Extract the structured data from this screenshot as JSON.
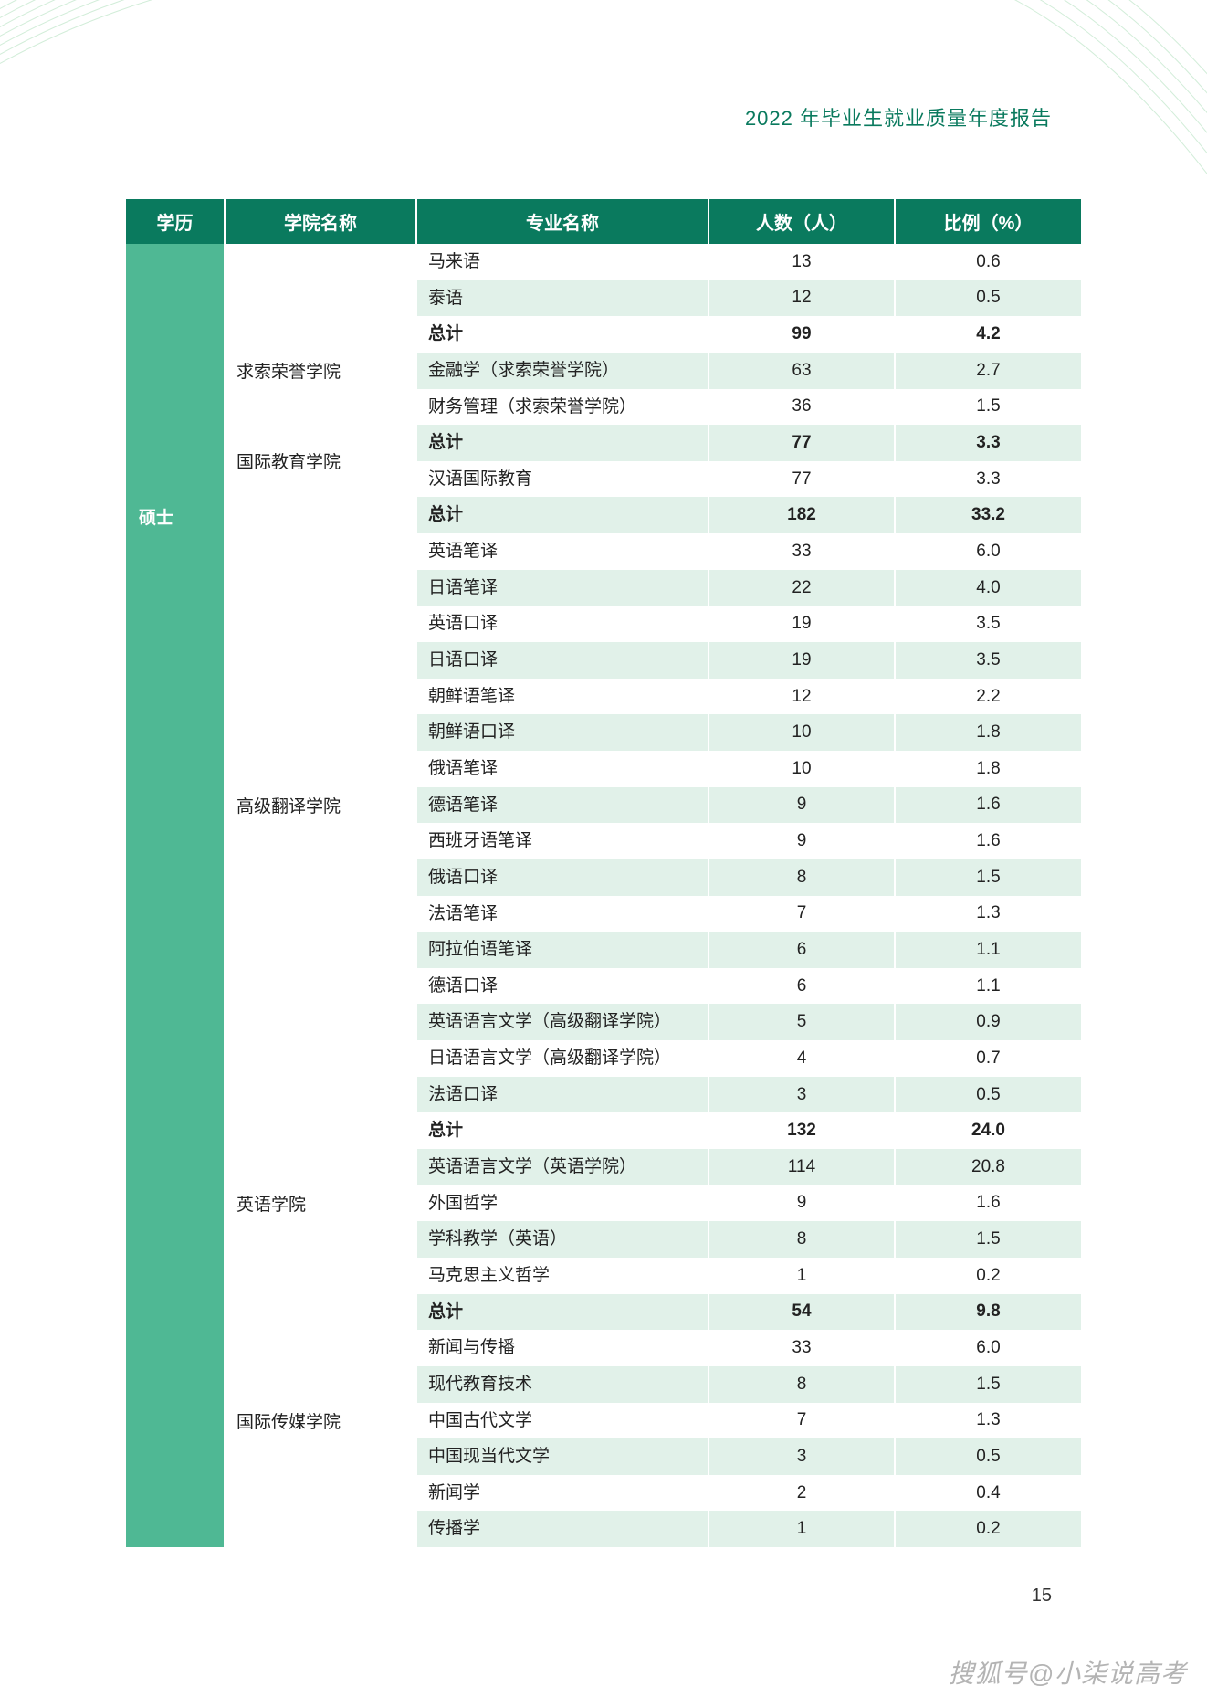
{
  "report_title": "2022 年毕业生就业质量年度报告",
  "page_number": "15",
  "watermark": "搜狐号@小柒说高考",
  "colors": {
    "header_bg": "#0a7a5e",
    "header_text": "#ffffff",
    "degree_cell_bg": "#4fb894",
    "row_stripe": "#e1f1e9",
    "page_bg": "#ffffff",
    "title_color": "#0a7a5e"
  },
  "table": {
    "columns": [
      "学历",
      "学院名称",
      "专业名称",
      "人数（人）",
      "比例（%）"
    ],
    "rows": [
      {
        "degree": "",
        "degree_rowspan": 7,
        "college": "",
        "college_rowspan": 2,
        "major": "马来语",
        "count": "13",
        "pct": "0.6",
        "total": false
      },
      {
        "major": "泰语",
        "count": "12",
        "pct": "0.5",
        "total": false
      },
      {
        "college": "求索荣誉学院",
        "college_rowspan": 3,
        "major": "总计",
        "count": "99",
        "pct": "4.2",
        "total": true
      },
      {
        "major": "金融学（求索荣誉学院）",
        "count": "63",
        "pct": "2.7",
        "total": false
      },
      {
        "major": "财务管理（求索荣誉学院）",
        "count": "36",
        "pct": "1.5",
        "total": false
      },
      {
        "college": "国际教育学院",
        "college_rowspan": 2,
        "major": "总计",
        "count": "77",
        "pct": "3.3",
        "total": true
      },
      {
        "major": "汉语国际教育",
        "count": "77",
        "pct": "3.3",
        "total": false
      },
      {
        "degree": "硕士",
        "degree_rowspan": 30,
        "college": "高级翻译学院",
        "college_rowspan": 17,
        "major": "总计",
        "count": "182",
        "pct": "33.2",
        "total": true
      },
      {
        "major": "英语笔译",
        "count": "33",
        "pct": "6.0",
        "total": false
      },
      {
        "major": "日语笔译",
        "count": "22",
        "pct": "4.0",
        "total": false
      },
      {
        "major": "英语口译",
        "count": "19",
        "pct": "3.5",
        "total": false
      },
      {
        "major": "日语口译",
        "count": "19",
        "pct": "3.5",
        "total": false
      },
      {
        "major": "朝鲜语笔译",
        "count": "12",
        "pct": "2.2",
        "total": false
      },
      {
        "major": "朝鲜语口译",
        "count": "10",
        "pct": "1.8",
        "total": false
      },
      {
        "major": "俄语笔译",
        "count": "10",
        "pct": "1.8",
        "total": false
      },
      {
        "major": "德语笔译",
        "count": "9",
        "pct": "1.6",
        "total": false
      },
      {
        "major": "西班牙语笔译",
        "count": "9",
        "pct": "1.6",
        "total": false
      },
      {
        "major": "俄语口译",
        "count": "8",
        "pct": "1.5",
        "total": false
      },
      {
        "major": "法语笔译",
        "count": "7",
        "pct": "1.3",
        "total": false
      },
      {
        "major": "阿拉伯语笔译",
        "count": "6",
        "pct": "1.1",
        "total": false
      },
      {
        "major": "德语口译",
        "count": "6",
        "pct": "1.1",
        "total": false
      },
      {
        "major": "英语语言文学（高级翻译学院）",
        "count": "5",
        "pct": "0.9",
        "total": false
      },
      {
        "major": "日语语言文学（高级翻译学院）",
        "count": "4",
        "pct": "0.7",
        "total": false
      },
      {
        "major": "法语口译",
        "count": "3",
        "pct": "0.5",
        "total": false
      },
      {
        "college": "英语学院",
        "college_rowspan": 5,
        "major": "总计",
        "count": "132",
        "pct": "24.0",
        "total": true
      },
      {
        "major": "英语语言文学（英语学院）",
        "count": "114",
        "pct": "20.8",
        "total": false
      },
      {
        "major": "外国哲学",
        "count": "9",
        "pct": "1.6",
        "total": false
      },
      {
        "major": "学科教学（英语）",
        "count": "8",
        "pct": "1.5",
        "total": false
      },
      {
        "major": "马克思主义哲学",
        "count": "1",
        "pct": "0.2",
        "total": false
      },
      {
        "college": "国际传媒学院",
        "college_rowspan": 7,
        "major": "总计",
        "count": "54",
        "pct": "9.8",
        "total": true
      },
      {
        "major": "新闻与传播",
        "count": "33",
        "pct": "6.0",
        "total": false
      },
      {
        "major": "现代教育技术",
        "count": "8",
        "pct": "1.5",
        "total": false
      },
      {
        "major": "中国古代文学",
        "count": "7",
        "pct": "1.3",
        "total": false
      },
      {
        "major": "中国现当代文学",
        "count": "3",
        "pct": "0.5",
        "total": false
      },
      {
        "major": "新闻学",
        "count": "2",
        "pct": "0.4",
        "total": false
      },
      {
        "major": "传播学",
        "count": "1",
        "pct": "0.2",
        "total": false
      }
    ]
  }
}
